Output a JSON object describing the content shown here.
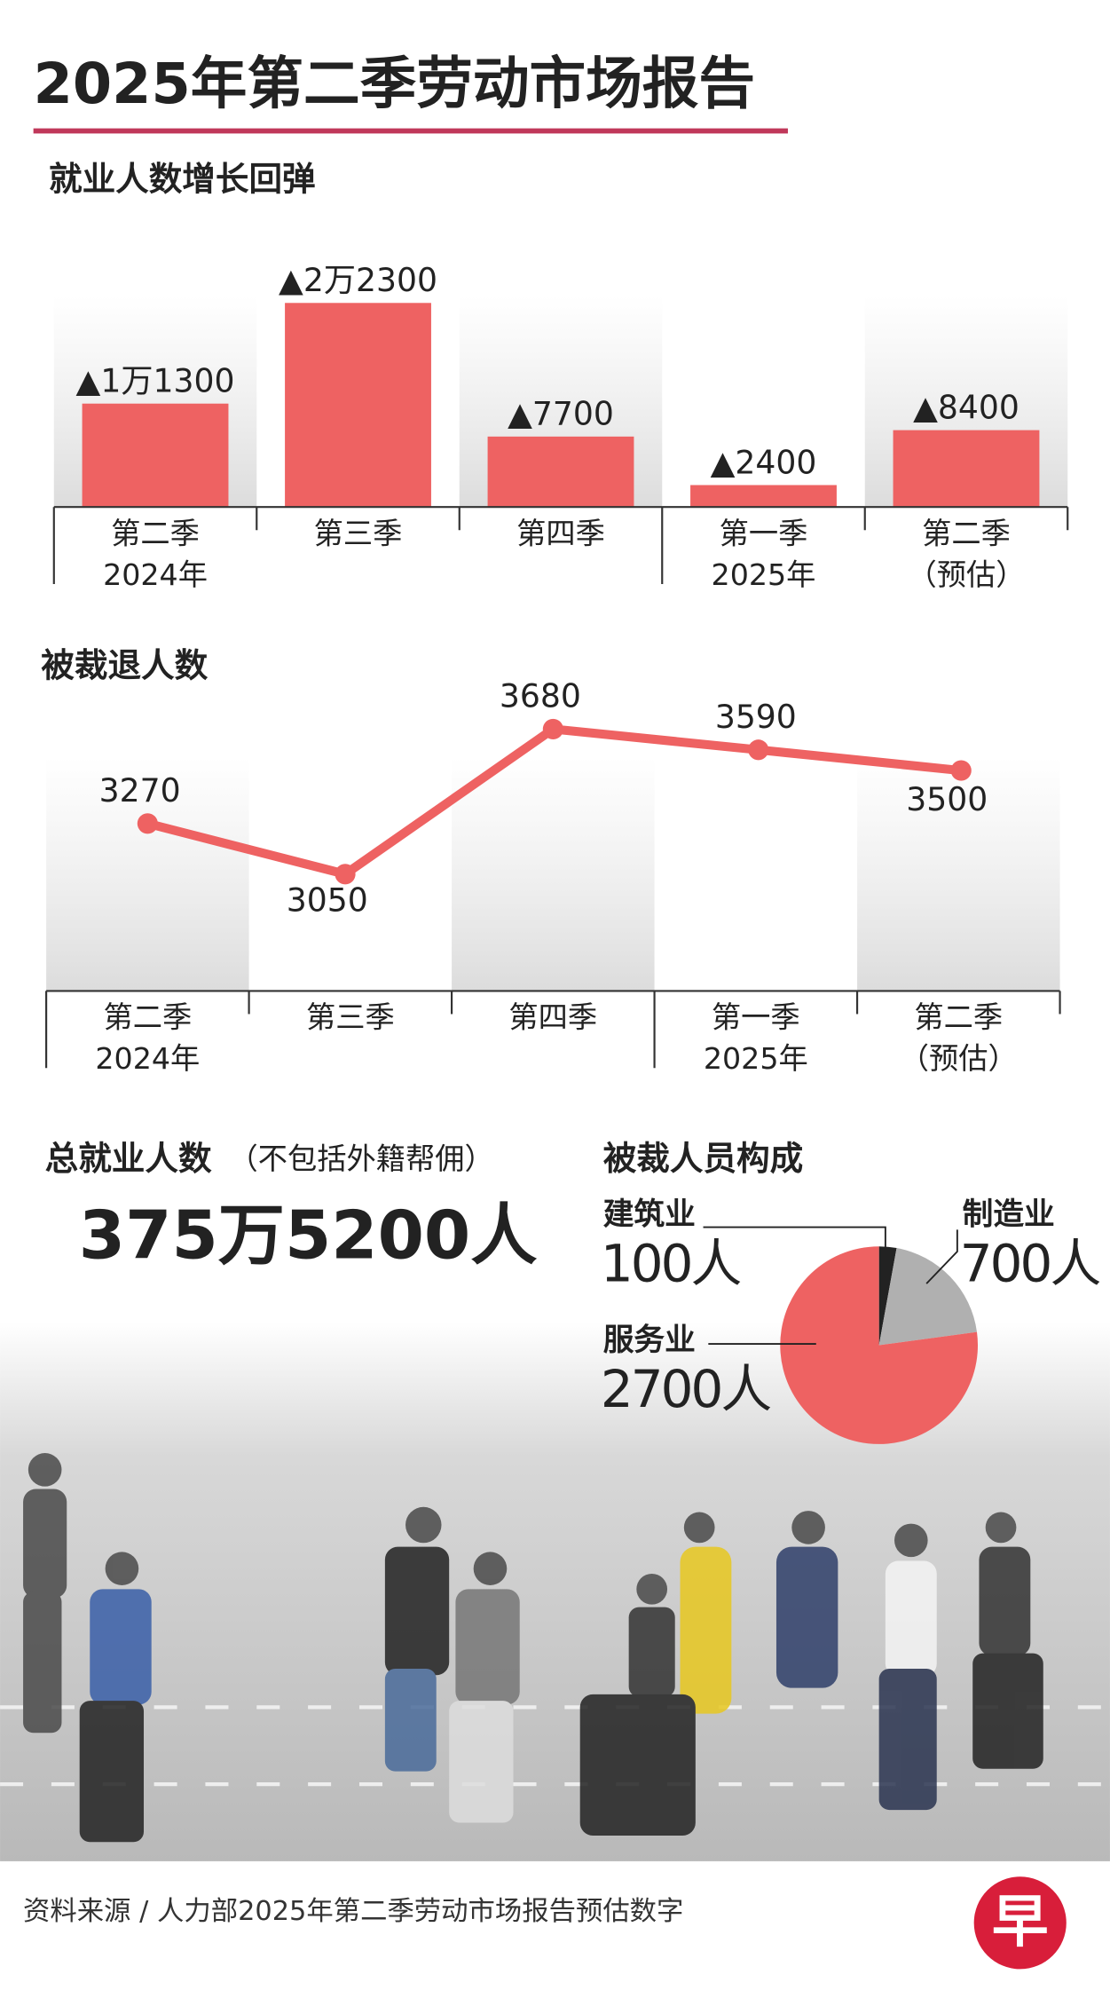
{
  "header": {
    "title": "2025年第二季劳动市场报告"
  },
  "chart_data": [
    {
      "type": "bar",
      "title": "就业人数增长回弹",
      "categories": [
        [
          "第二季",
          "2024年"
        ],
        [
          "第三季"
        ],
        [
          "第四季"
        ],
        [
          "第一季",
          "2025年"
        ],
        [
          "第二季",
          "（预估）"
        ]
      ],
      "values": [
        11300,
        22300,
        7700,
        2400,
        8400
      ],
      "value_labels": [
        "▲1万1300",
        "▲2万2300",
        "▲7700",
        "▲2400",
        "▲8400"
      ],
      "color": "#ee6262"
    },
    {
      "type": "line",
      "title": "被裁退人数",
      "categories": [
        [
          "第二季",
          "2024年"
        ],
        [
          "第三季"
        ],
        [
          "第四季"
        ],
        [
          "第一季",
          "2025年"
        ],
        [
          "第二季",
          "（预估）"
        ]
      ],
      "values": [
        3270,
        3050,
        3680,
        3590,
        3500
      ],
      "color": "#ee6262"
    },
    {
      "type": "pie",
      "title": "被裁人员构成",
      "categories": [
        "建筑业",
        "制造业",
        "服务业"
      ],
      "values": [
        100,
        700,
        2700
      ],
      "value_labels": [
        "100人",
        "700人",
        "2700人"
      ],
      "colors": [
        "#222222",
        "#b0b0b0",
        "#ee6262"
      ]
    }
  ],
  "total": {
    "title": "总就业人数",
    "note": "（不包括外籍帮佣）",
    "value_label": "375万5200人"
  },
  "source": "资料来源 / 人力部2025年第二季劳动市场报告预估数字",
  "logo": "早"
}
